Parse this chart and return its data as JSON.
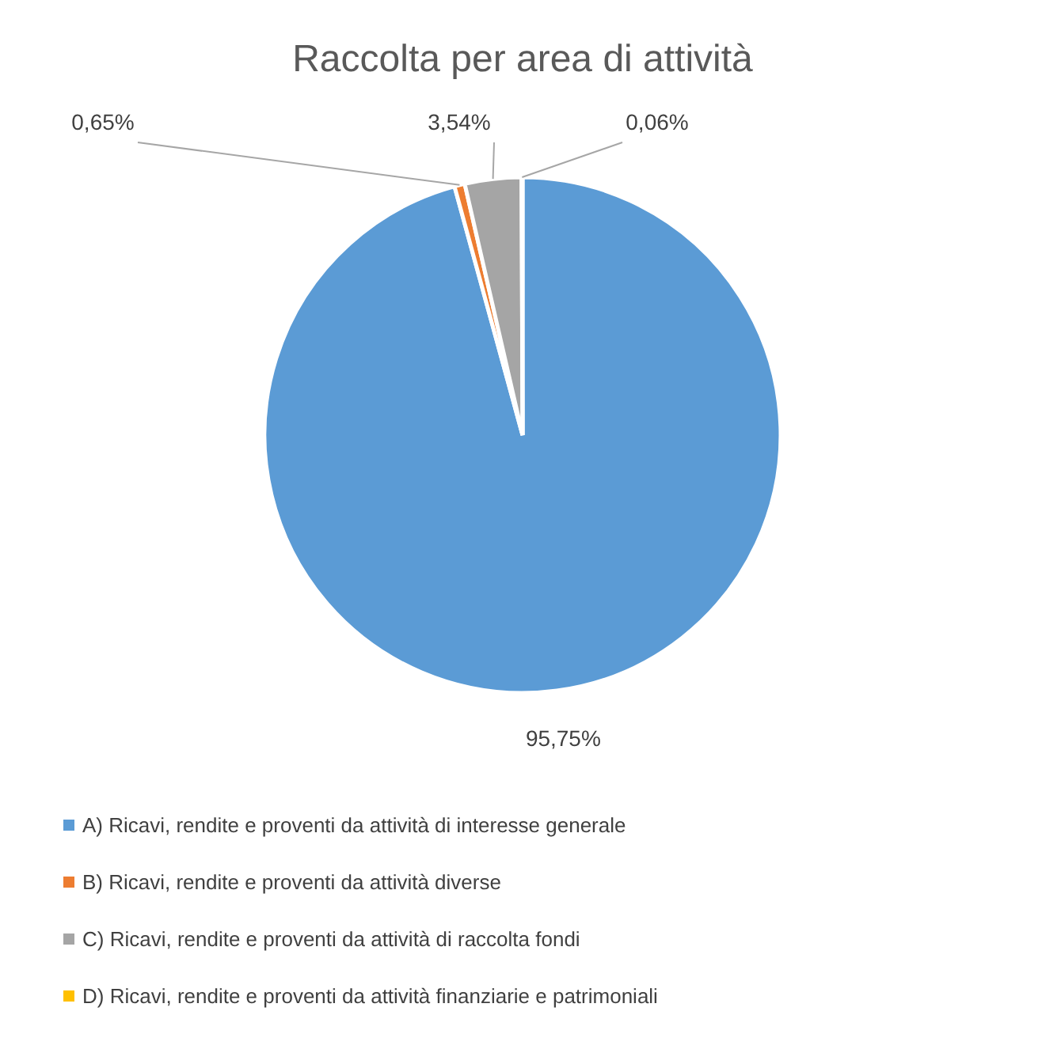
{
  "chart_data": {
    "type": "pie",
    "title": "Raccolta per area di attività",
    "categories": [
      "A) Ricavi, rendite e proventi da attività di interesse generale",
      "B) Ricavi, rendite e proventi da attività diverse",
      "C) Ricavi, rendite e proventi da attività di raccolta fondi",
      "D) Ricavi, rendite e proventi da attività finanziarie e patrimoniali"
    ],
    "values": [
      95.75,
      0.65,
      3.54,
      0.06
    ],
    "colors": [
      "#5b9bd5",
      "#ed7d31",
      "#a5a5a5",
      "#ffc000"
    ],
    "value_labels": [
      "95,75%",
      "0,65%",
      "3,54%",
      "0,06%"
    ],
    "legend": "bottom"
  }
}
